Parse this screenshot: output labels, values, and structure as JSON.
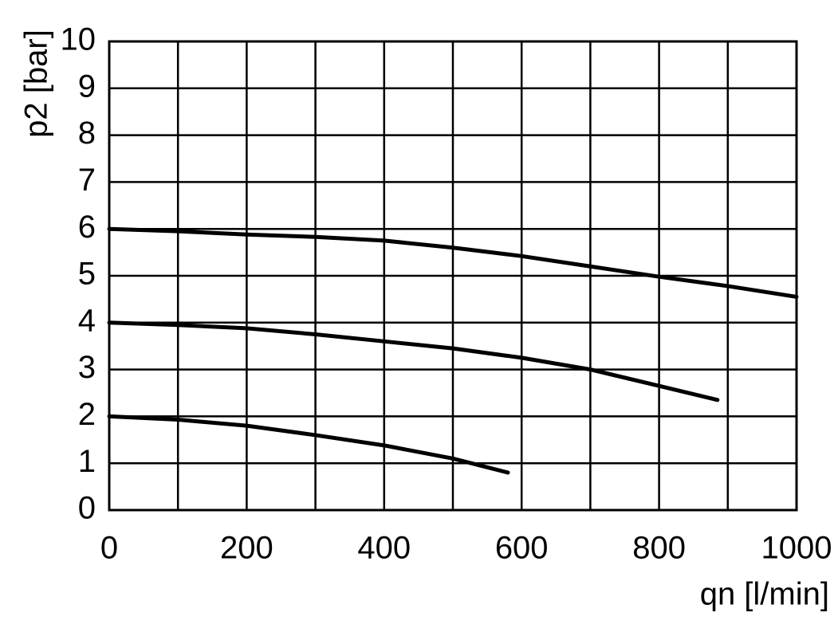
{
  "chart_data": {
    "type": "line",
    "x_label": "qn [l/min]",
    "y_label": "p2 [bar]",
    "xlim": [
      0,
      1000
    ],
    "ylim": [
      0,
      10
    ],
    "xticks": [
      0,
      200,
      400,
      600,
      800,
      1000
    ],
    "xminor": [
      100,
      300,
      500,
      700,
      900
    ],
    "yticks": [
      0,
      1,
      2,
      3,
      4,
      5,
      6,
      7,
      8,
      9,
      10
    ],
    "grid": true,
    "series": [
      {
        "color": "#000000",
        "x": [
          0,
          100,
          200,
          300,
          400,
          500,
          600,
          700,
          800,
          900,
          1000
        ],
        "values": [
          6,
          5.95,
          5.88,
          5.83,
          5.75,
          5.6,
          5.42,
          5.2,
          4.98,
          4.78,
          4.55
        ]
      },
      {
        "color": "#000000",
        "x": [
          0,
          100,
          200,
          300,
          400,
          500,
          600,
          700,
          800,
          885
        ],
        "values": [
          4,
          3.95,
          3.88,
          3.75,
          3.6,
          3.45,
          3.25,
          3.0,
          2.65,
          2.35
        ]
      },
      {
        "color": "#000000",
        "x": [
          0,
          100,
          200,
          300,
          400,
          500,
          580
        ],
        "values": [
          2,
          1.93,
          1.8,
          1.6,
          1.38,
          1.1,
          0.8
        ]
      }
    ]
  }
}
